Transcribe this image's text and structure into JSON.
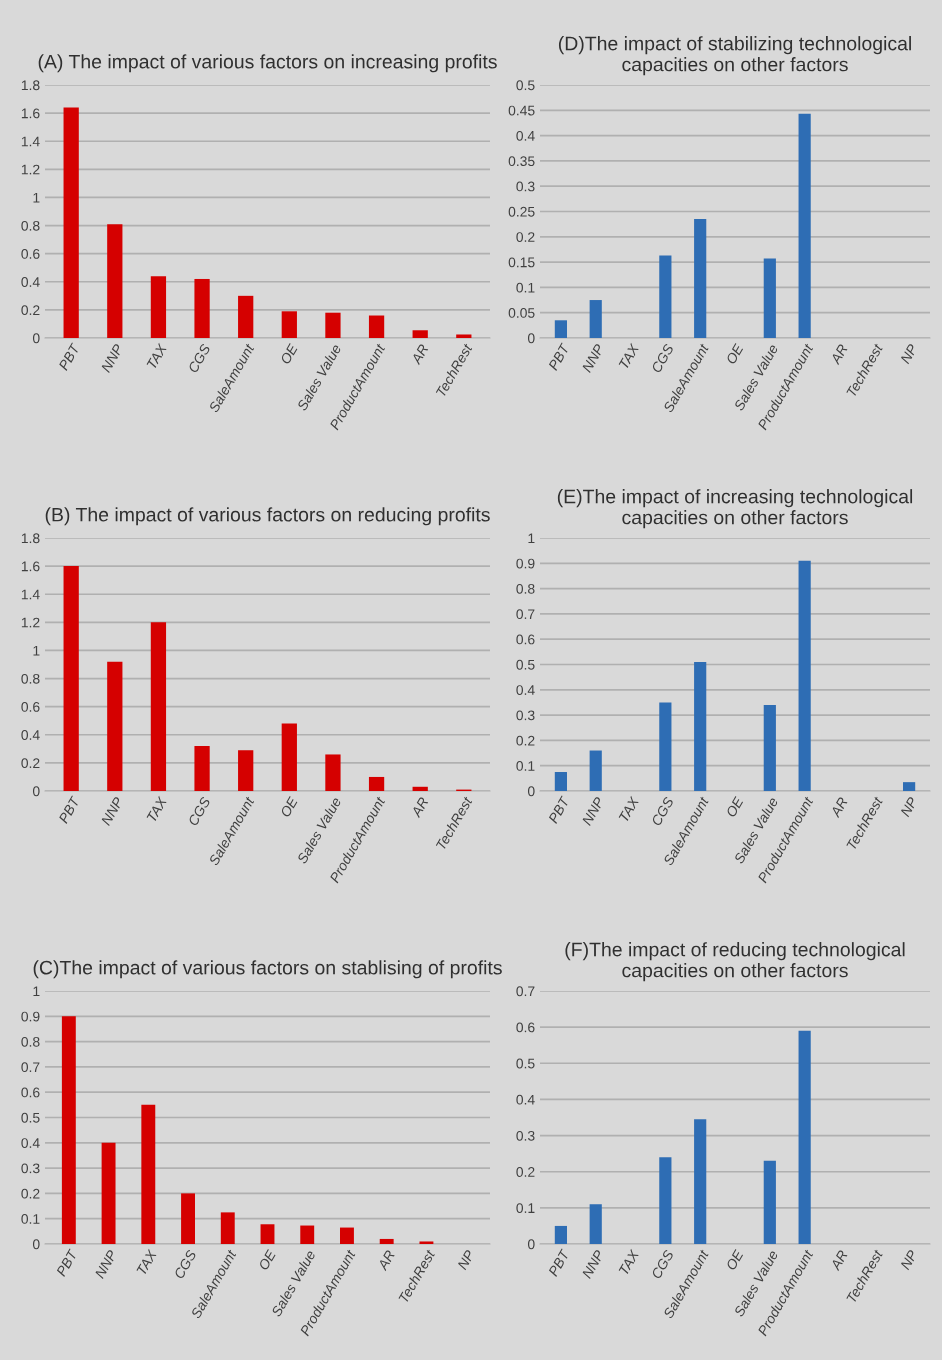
{
  "chart_data": [
    {
      "type": "bar",
      "title": "(A) The impact of various factors on increasing profits",
      "categories": [
        "PBT",
        "NNP",
        "TAX",
        "CGS",
        "SaleAmount",
        "OE",
        "Sales Value",
        "ProductAmount",
        "AR",
        "TechRest"
      ],
      "values": [
        1.64,
        0.81,
        0.44,
        0.42,
        0.3,
        0.19,
        0.18,
        0.16,
        0.055,
        0.025
      ],
      "color": "#d50000",
      "ylim": [
        0,
        1.8
      ],
      "yticks": [
        0,
        0.2,
        0.4,
        0.6,
        0.8,
        1,
        1.2,
        1.4,
        1.6,
        1.8
      ],
      "grid": "y"
    },
    {
      "type": "bar",
      "title": "(D)The impact of stabilizing technological capacities on other factors",
      "categories": [
        "PBT",
        "NNP",
        "TAX",
        "CGS",
        "SaleAmount",
        "OE",
        "Sales Value",
        "ProductAmount",
        "AR",
        "TechRest",
        "NP"
      ],
      "values": [
        0.035,
        0.075,
        0,
        0.163,
        0.235,
        0,
        0.157,
        0.443,
        0,
        0,
        0
      ],
      "color": "#2e6db4",
      "ylim": [
        0,
        0.5
      ],
      "yticks": [
        0,
        0.05,
        0.1,
        0.15,
        0.2,
        0.25,
        0.3,
        0.35,
        0.4,
        0.45,
        0.5
      ],
      "grid": "y"
    },
    {
      "type": "bar",
      "title": "(B) The impact of various factors on reducing profits",
      "categories": [
        "PBT",
        "NNP",
        "TAX",
        "CGS",
        "SaleAmount",
        "OE",
        "Sales Value",
        "ProductAmount",
        "AR",
        "TechRest"
      ],
      "values": [
        1.6,
        0.92,
        1.2,
        0.32,
        0.29,
        0.48,
        0.26,
        0.1,
        0.03,
        0.01
      ],
      "color": "#d50000",
      "ylim": [
        0,
        1.8
      ],
      "yticks": [
        0,
        0.2,
        0.4,
        0.6,
        0.8,
        1,
        1.2,
        1.4,
        1.6,
        1.8
      ],
      "grid": "y"
    },
    {
      "type": "bar",
      "title": "(E)The impact of increasing technological capacities on other factors",
      "categories": [
        "PBT",
        "NNP",
        "TAX",
        "CGS",
        "SaleAmount",
        "OE",
        "Sales Value",
        "ProductAmount",
        "AR",
        "TechRest",
        "NP"
      ],
      "values": [
        0.075,
        0.16,
        0,
        0.35,
        0.51,
        0,
        0.34,
        0.91,
        0,
        0,
        0.035
      ],
      "color": "#2e6db4",
      "ylim": [
        0,
        1
      ],
      "yticks": [
        0,
        0.1,
        0.2,
        0.3,
        0.4,
        0.5,
        0.6,
        0.7,
        0.8,
        0.9,
        1
      ],
      "grid": "y"
    },
    {
      "type": "bar",
      "title": "(C)The impact of various factors on stablising of profits",
      "categories": [
        "PBT",
        "NNP",
        "TAX",
        "CGS",
        "SaleAmount",
        "OE",
        "Sales Value",
        "ProductAmount",
        "AR",
        "TechRest",
        "NP"
      ],
      "values": [
        0.9,
        0.4,
        0.55,
        0.2,
        0.125,
        0.078,
        0.073,
        0.065,
        0.02,
        0.01,
        0
      ],
      "color": "#d50000",
      "ylim": [
        0,
        1
      ],
      "yticks": [
        0,
        0.1,
        0.2,
        0.3,
        0.4,
        0.5,
        0.6,
        0.7,
        0.8,
        0.9,
        1
      ],
      "grid": "y"
    },
    {
      "type": "bar",
      "title": "(F)The impact of reducing technological capacities on other factors",
      "categories": [
        "PBT",
        "NNP",
        "TAX",
        "CGS",
        "SaleAmount",
        "OE",
        "Sales Value",
        "ProductAmount",
        "AR",
        "TechRest",
        "NP"
      ],
      "values": [
        0.05,
        0.11,
        0,
        0.24,
        0.345,
        0,
        0.23,
        0.59,
        0,
        0,
        0
      ],
      "color": "#2e6db4",
      "ylim": [
        0,
        0.7
      ],
      "yticks": [
        0,
        0.1,
        0.2,
        0.3,
        0.4,
        0.5,
        0.6,
        0.7
      ],
      "grid": "y"
    }
  ]
}
